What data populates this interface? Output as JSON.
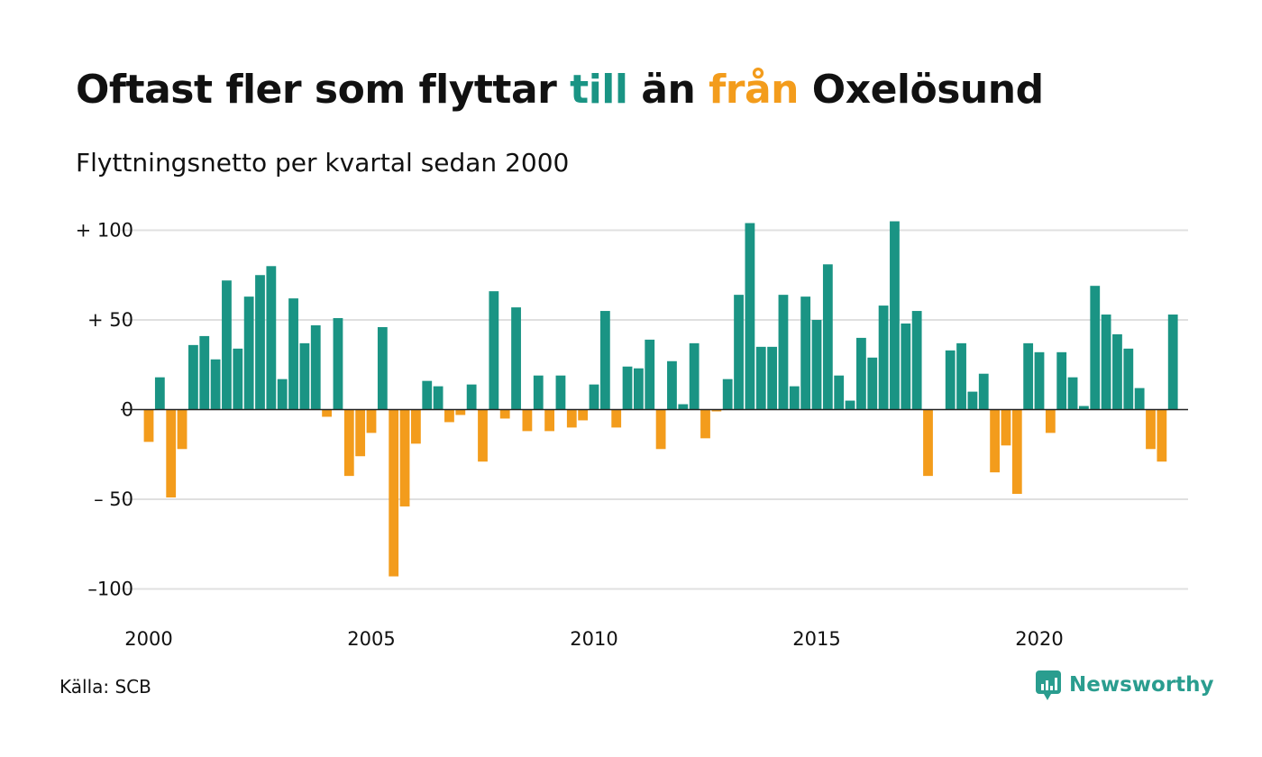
{
  "title": {
    "part1": "Oftast fler som flyttar ",
    "till": "till",
    "part2": " än ",
    "fran": "från",
    "part3": " Oxelösund"
  },
  "subtitle": "Flyttningsnetto per kvartal sedan 2000",
  "source": "Källa: SCB",
  "brand": "Newsworthy",
  "colors": {
    "positive": "#1a9484",
    "negative": "#f39c1c",
    "grid": "#e0e0e0",
    "axis": "#222222",
    "brand": "#2a9d8f"
  },
  "chart_data": {
    "type": "bar",
    "title": "Oftast fler som flyttar till än från Oxelösund",
    "subtitle": "Flyttningsnetto per kvartal sedan 2000",
    "ylim": [
      -100,
      100
    ],
    "y_ticks": [
      100,
      50,
      0,
      -50,
      -100
    ],
    "y_tick_labels": [
      "+ 100",
      "+  50",
      "0",
      "– 50",
      "–100"
    ],
    "x_ticks": [
      2000,
      2005,
      2010,
      2015,
      2020
    ],
    "x_tick_labels": [
      "2000",
      "2005",
      "2010",
      "2015",
      "2020"
    ],
    "grid": true,
    "start_year": 2000,
    "start_quarter": 1,
    "values": [
      -18,
      18,
      -49,
      -22,
      36,
      41,
      28,
      72,
      34,
      63,
      75,
      80,
      17,
      62,
      37,
      47,
      -4,
      51,
      -37,
      -26,
      -13,
      46,
      -93,
      -54,
      -19,
      16,
      13,
      -7,
      -3,
      14,
      -29,
      66,
      -5,
      57,
      -12,
      19,
      -12,
      19,
      -10,
      -6,
      14,
      55,
      -10,
      24,
      23,
      39,
      -22,
      27,
      3,
      37,
      -16,
      -1,
      17,
      64,
      104,
      35,
      35,
      64,
      13,
      63,
      50,
      81,
      19,
      5,
      40,
      29,
      58,
      105,
      48,
      55,
      -37,
      0,
      33,
      37,
      10,
      20,
      -35,
      -20,
      -47,
      37,
      32,
      -13,
      32,
      18,
      2,
      69,
      53,
      42,
      34,
      12,
      -22,
      -29,
      53
    ]
  }
}
